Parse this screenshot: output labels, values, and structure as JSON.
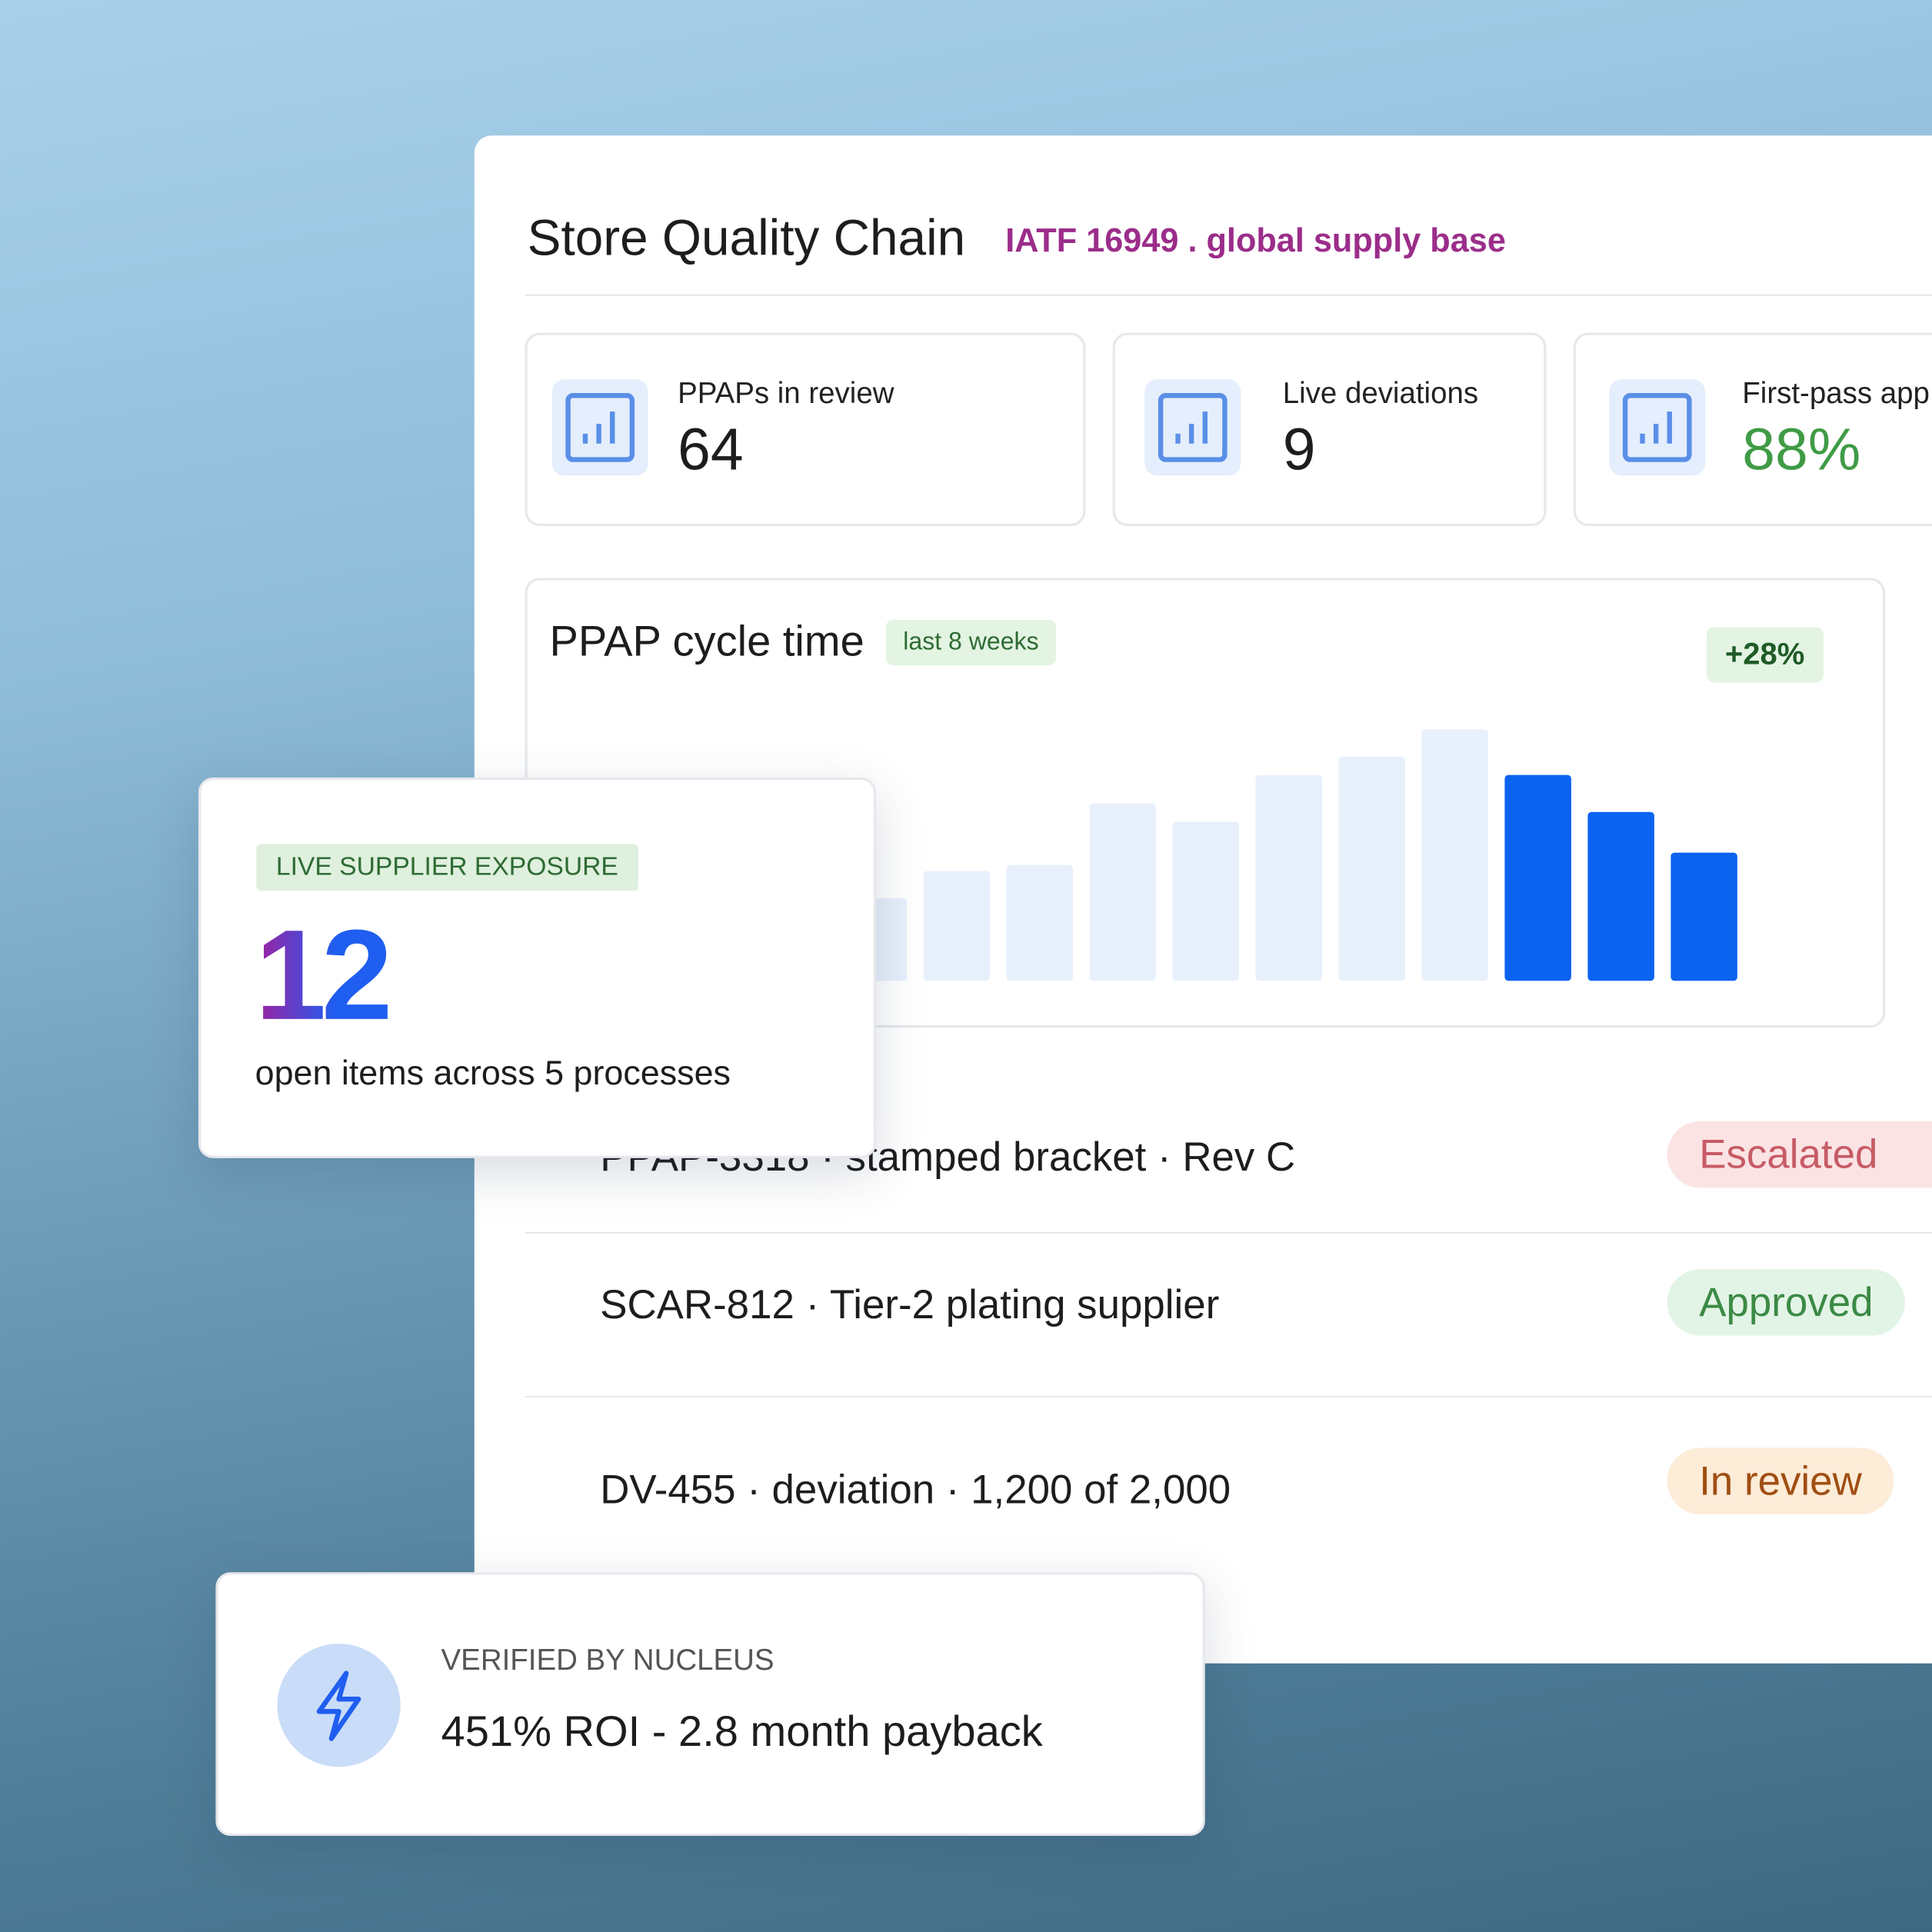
{
  "header": {
    "title": "Store Quality Chain",
    "subtitle": "IATF 16949 . global supply base"
  },
  "kpis": [
    {
      "label": "PPAPs in review",
      "value": "64"
    },
    {
      "label": "Live deviations",
      "value": "9"
    },
    {
      "label": "First-pass app",
      "value": "88%"
    }
  ],
  "chart_data": {
    "type": "bar",
    "title": "PPAP cycle time",
    "badge": "last 8 weeks",
    "change": "+28%",
    "values": [
      67,
      89,
      94,
      144,
      129,
      167,
      182,
      204,
      167,
      137,
      104
    ],
    "colors": [
      "#e8f0fc",
      "#e8f0fc",
      "#e8f0fc",
      "#e8f0fc",
      "#e8f0fc",
      "#e8f0fc",
      "#e8f0fc",
      "#e8f0fc",
      "#0b63f0",
      "#0b63f0",
      "#0b63f0"
    ]
  },
  "rows": [
    {
      "text": "PPAP-3318 · stamped bracket · Rev C",
      "status": "Escalated"
    },
    {
      "text": "SCAR-812 · Tier-2 plating supplier",
      "status": "Approved"
    },
    {
      "text": "DV-455 · deviation · 1,200 of 2,000",
      "status": "In review"
    }
  ],
  "exposure": {
    "badge": "LIVE SUPPLIER EXPOSURE",
    "value": "12",
    "caption": "open items across 5 processes"
  },
  "verified": {
    "label": "VERIFIED BY NUCLEUS",
    "text": "451% ROI - 2.8 month payback"
  }
}
